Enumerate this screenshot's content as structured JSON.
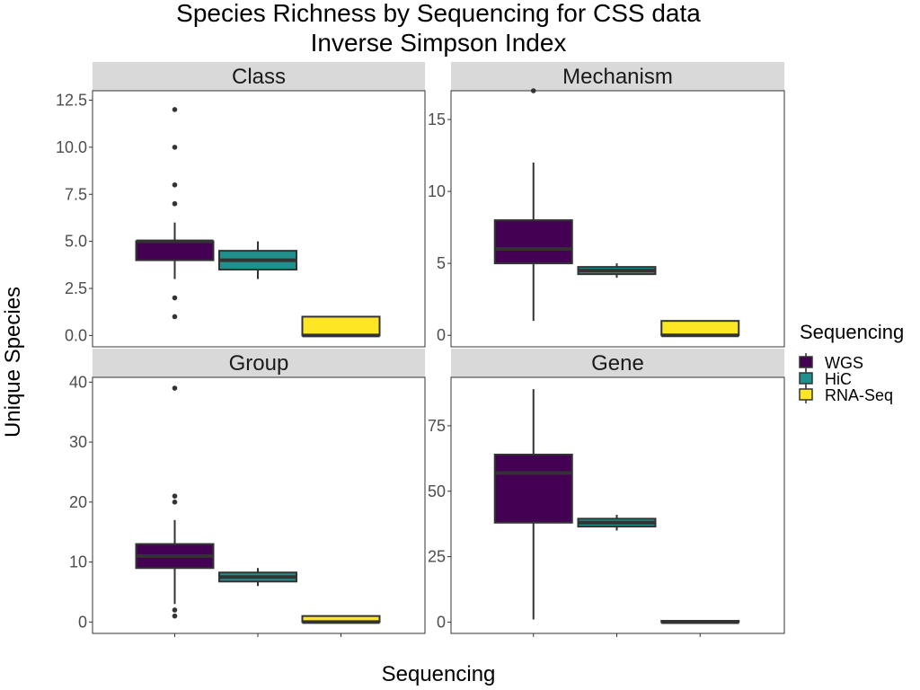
{
  "chart_data": {
    "type": "boxplot",
    "title": "Species Richness by Sequencing for CSS data",
    "subtitle": "Inverse Simpson Index",
    "xlabel": "Sequencing",
    "ylabel": "Unique Species",
    "legend_title": "Sequencing",
    "legend_position": "right",
    "grid": false,
    "categories": [
      "WGS",
      "HiC",
      "RNA-Seq"
    ],
    "colors": {
      "WGS": "#440154",
      "HiC": "#21908C",
      "RNA-Seq": "#FDE725"
    },
    "panels": [
      {
        "name": "Class",
        "ylim": [
          -0.6,
          13.0
        ],
        "yticks": [
          0,
          2.5,
          5,
          7.5,
          10,
          12.5
        ],
        "ytick_labels": [
          "0.0",
          "2.5",
          "5.0",
          "7.5",
          "10.0",
          "12.5"
        ],
        "boxes": [
          {
            "category": "WGS",
            "q1": 4,
            "median": 5,
            "q3": 5,
            "whisker_low": 3,
            "whisker_high": 6,
            "outliers": [
              12,
              10,
              8,
              7,
              2,
              1
            ]
          },
          {
            "category": "HiC",
            "q1": 3.5,
            "median": 4,
            "q3": 4.5,
            "whisker_low": 3,
            "whisker_high": 5,
            "outliers": []
          },
          {
            "category": "RNA-Seq",
            "q1": 0,
            "median": 0,
            "q3": 1,
            "whisker_low": 0,
            "whisker_high": 1,
            "outliers": []
          }
        ]
      },
      {
        "name": "Mechanism",
        "ylim": [
          -0.8,
          17.0
        ],
        "yticks": [
          0,
          5,
          10,
          15
        ],
        "ytick_labels": [
          "0",
          "5",
          "10",
          "15"
        ],
        "boxes": [
          {
            "category": "WGS",
            "q1": 5,
            "median": 6,
            "q3": 8,
            "whisker_low": 1,
            "whisker_high": 12,
            "outliers": [
              17
            ]
          },
          {
            "category": "HiC",
            "q1": 4.25,
            "median": 4.5,
            "q3": 4.75,
            "whisker_low": 4,
            "whisker_high": 5,
            "outliers": []
          },
          {
            "category": "RNA-Seq",
            "q1": 0,
            "median": 0,
            "q3": 1,
            "whisker_low": 0,
            "whisker_high": 1,
            "outliers": []
          }
        ]
      },
      {
        "name": "Group",
        "ylim": [
          -1.9,
          40.8
        ],
        "yticks": [
          0,
          10,
          20,
          30,
          40
        ],
        "ytick_labels": [
          "0",
          "10",
          "20",
          "30",
          "40"
        ],
        "boxes": [
          {
            "category": "WGS",
            "q1": 9,
            "median": 11,
            "q3": 13,
            "whisker_low": 3,
            "whisker_high": 17,
            "outliers": [
              39,
              21,
              20,
              2,
              1
            ]
          },
          {
            "category": "HiC",
            "q1": 6.75,
            "median": 7.5,
            "q3": 8.25,
            "whisker_low": 6,
            "whisker_high": 9,
            "outliers": []
          },
          {
            "category": "RNA-Seq",
            "q1": 0,
            "median": 0,
            "q3": 1,
            "whisker_low": 0,
            "whisker_high": 1,
            "outliers": []
          }
        ]
      },
      {
        "name": "Gene",
        "ylim": [
          -4.3,
          93.5
        ],
        "yticks": [
          0,
          25,
          50,
          75
        ],
        "ytick_labels": [
          "0",
          "25",
          "50",
          "75"
        ],
        "boxes": [
          {
            "category": "WGS",
            "q1": 38,
            "median": 57,
            "q3": 64,
            "whisker_low": 1,
            "whisker_high": 89,
            "outliers": []
          },
          {
            "category": "HiC",
            "q1": 36.5,
            "median": 38,
            "q3": 39.5,
            "whisker_low": 35,
            "whisker_high": 41,
            "outliers": []
          },
          {
            "category": "RNA-Seq",
            "q1": 0,
            "median": 0,
            "q3": 0.5,
            "whisker_low": 0,
            "whisker_high": 0.5,
            "outliers": []
          }
        ]
      }
    ]
  }
}
